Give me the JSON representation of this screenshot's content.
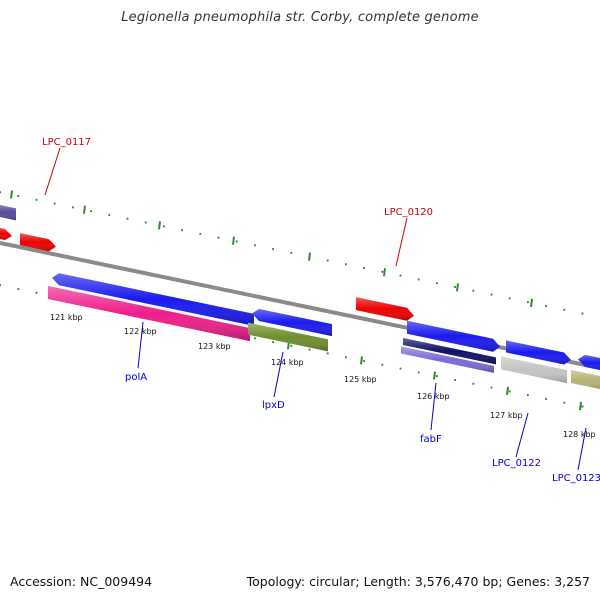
{
  "title": "Legionella pneumophila str. Corby, complete genome",
  "accession_label": "Accession: NC_009494",
  "topology_label": "Topology: circular; Length: 3,576,470 bp; Genes: 3,257",
  "colors": {
    "backbone": "#8a8a8a",
    "tick": "#2e8b2e",
    "label_red": "#cc0000",
    "label_blue": "#0000cc"
  },
  "kbp_ticks": [
    "121 kbp",
    "122 kbp",
    "123 kbp",
    "124 kbp",
    "125 kbp",
    "126 kbp",
    "127 kbp",
    "128 kbp"
  ],
  "gene_labels": [
    {
      "text": "LPC_0117",
      "color": "red"
    },
    {
      "text": "LPC_0120",
      "color": "red"
    },
    {
      "text": "polA",
      "color": "blue"
    },
    {
      "text": "lpxD",
      "color": "blue"
    },
    {
      "text": "fabF",
      "color": "blue"
    },
    {
      "text": "LPC_0122",
      "color": "blue"
    },
    {
      "text": "LPC_0123",
      "color": "blue"
    }
  ],
  "feature_colors": {
    "red": "#ee0000",
    "blue": "#1a1aee",
    "magenta": "#ee1e8c",
    "olive": "#6f8e2e",
    "navy": "#101068",
    "lavender": "#7a6ad8",
    "purple": "#5a4a9a",
    "silver": "#c4c4c4",
    "khaki": "#b8b278"
  }
}
